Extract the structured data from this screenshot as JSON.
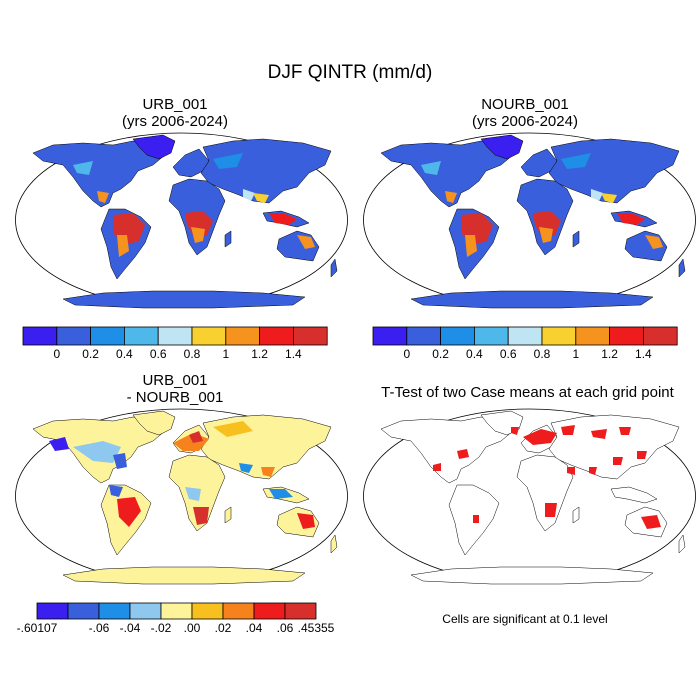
{
  "chart_data": [
    {
      "type": "map",
      "figure_title": "DJF QINTR (mm/d)",
      "title_line1": "URB_001",
      "title_line2": "(yrs 2006-2024)",
      "colorbar": {
        "labels": [
          "0",
          "0.2",
          "0.4",
          "0.6",
          "0.8",
          "1",
          "1.2",
          "1.4"
        ],
        "colors": [
          "#3b1ef0",
          "#3a5fdc",
          "#1e8ee6",
          "#4fb8ea",
          "#bfe4f4",
          "#f8d030",
          "#f6921e",
          "#ee1c1c",
          "#d7302c"
        ]
      }
    },
    {
      "type": "map",
      "title_line1": "NOURB_001",
      "title_line2": "(yrs 2006-2024)",
      "colorbar": {
        "labels": [
          "0",
          "0.2",
          "0.4",
          "0.6",
          "0.8",
          "1",
          "1.2",
          "1.4"
        ],
        "colors": [
          "#3b1ef0",
          "#3a5fdc",
          "#1e8ee6",
          "#4fb8ea",
          "#bfe4f4",
          "#f8d030",
          "#f6921e",
          "#ee1c1c",
          "#d7302c"
        ]
      }
    },
    {
      "type": "map",
      "title_line1": "URB_001",
      "title_line2": "- NOURB_001",
      "colorbar": {
        "labels": [
          "-.60107",
          "-.06",
          "-.04",
          "-.02",
          ".00",
          ".02",
          ".04",
          ".06",
          ".45355"
        ],
        "colors": [
          "#3b1ef0",
          "#3a5fdc",
          "#1e8ee6",
          "#8ec8ee",
          "#fdf39a",
          "#f8c01e",
          "#f6821e",
          "#ee1c1c",
          "#d7302c"
        ]
      }
    },
    {
      "type": "map",
      "title_line1": "T-Test of two Case means at each grid point",
      "note": "Cells are significant at 0.1 level",
      "significant_color": "#ee1c1c"
    }
  ]
}
